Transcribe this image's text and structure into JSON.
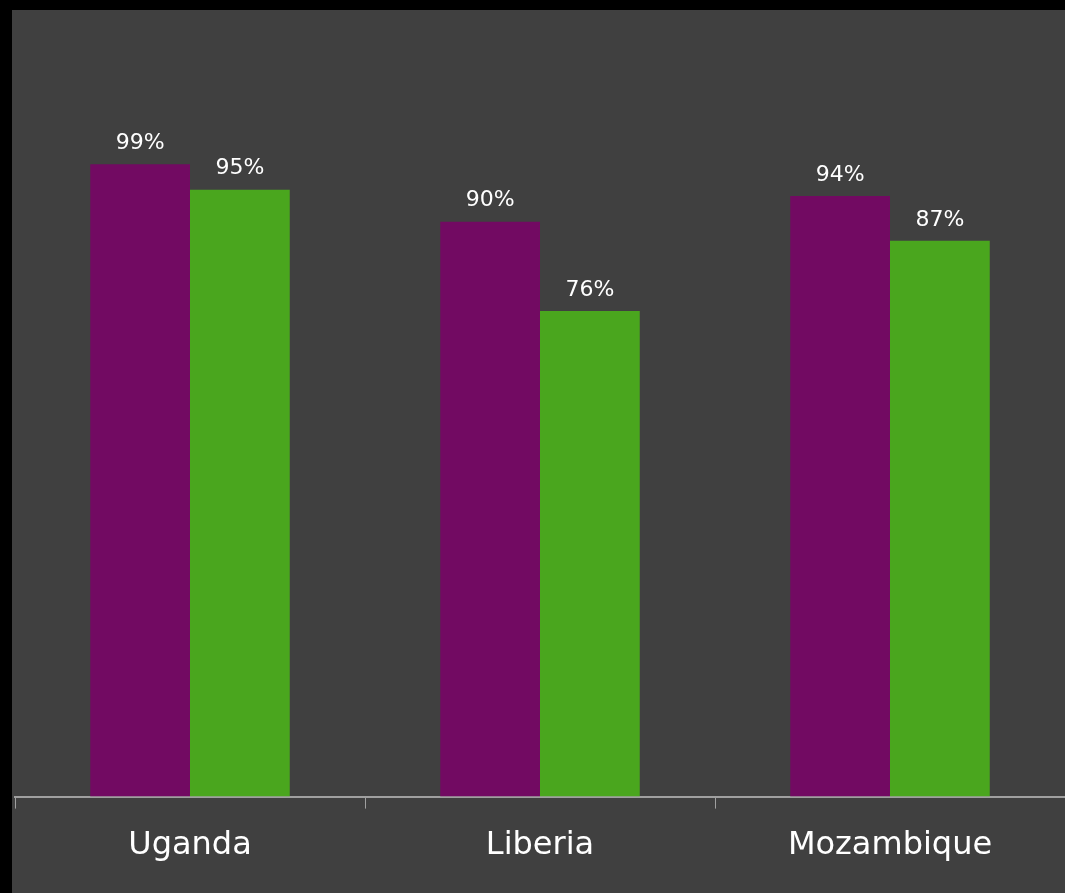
{
  "chart_data": {
    "type": "bar",
    "categories": [
      "Uganda",
      "Liberia",
      "Mozambique"
    ],
    "series": [
      {
        "color": "#720a62",
        "values": [
          99,
          90,
          94
        ],
        "value_labels": [
          "99%",
          "90%",
          "94%"
        ]
      },
      {
        "color": "#4aa61e",
        "values": [
          95,
          76,
          87
        ],
        "value_labels": [
          "95%",
          "76%",
          "87%"
        ]
      }
    ],
    "grid": false,
    "legend": false
  }
}
